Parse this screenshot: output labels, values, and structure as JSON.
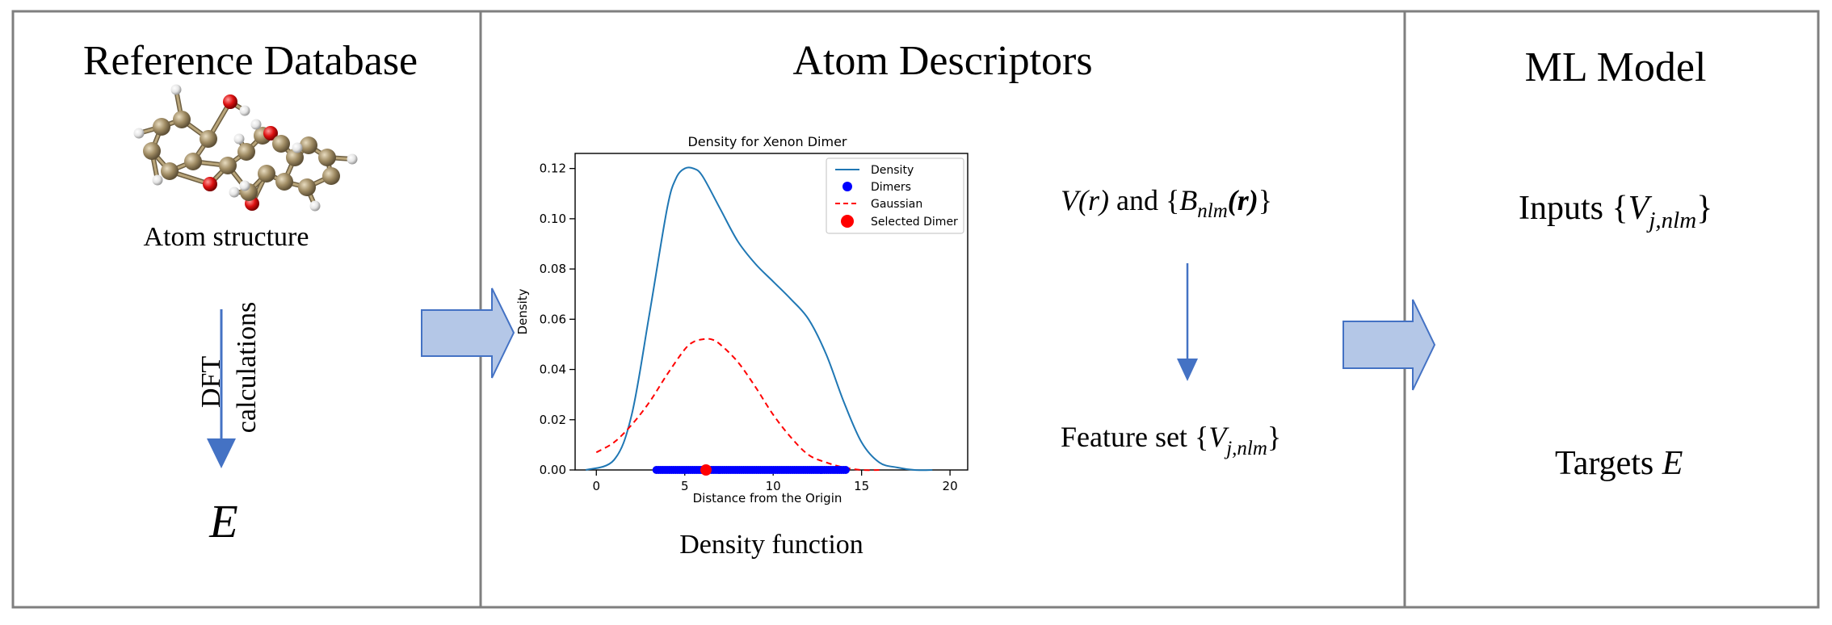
{
  "panels": {
    "reference": {
      "title": "Reference Database",
      "structure_caption": "Atom structure",
      "arrow_label_line1": "DFT",
      "arrow_label_line2": "calculations",
      "energy_symbol": "E"
    },
    "descriptors": {
      "title": "Atom Descriptors",
      "chart_caption": "Density function",
      "formula_top_v": "V",
      "formula_top_r": "(r)",
      "formula_top_and": " and {",
      "formula_top_b": "B",
      "formula_top_sub": "nlm",
      "formula_top_rbold": "(r)",
      "formula_top_close": "}",
      "feature_label": "Feature set {",
      "feature_v": "V",
      "feature_sub": "j,nlm",
      "feature_close": "}"
    },
    "model": {
      "title": "ML Model",
      "inputs_label": "Inputs {",
      "inputs_v": "V",
      "inputs_sub": "j,nlm",
      "inputs_close": "}",
      "targets_label": "Targets ",
      "targets_symbol": "E"
    }
  },
  "colors": {
    "panel_border": "#7f7f7f",
    "block_arrow_fill": "#b4c7e7",
    "block_arrow_stroke": "#4472c4",
    "thin_arrow": "#4472c4",
    "density_line": "#1f77b4",
    "gaussian_line": "#ff0000",
    "dimer_points": "#0000ff",
    "selected_dimer": "#ff0000",
    "carbon": "#a08c64",
    "oxygen": "#dd1111",
    "hydrogen": "#e4e4e4"
  },
  "chart_data": {
    "type": "line",
    "title": "Density for Xenon Dimer",
    "xlabel": "Distance from the Origin",
    "ylabel": "Density",
    "xlim": [
      -1.2,
      21
    ],
    "ylim": [
      0,
      0.126
    ],
    "xticks": [
      0,
      5,
      10,
      15,
      20
    ],
    "yticks": [
      0.0,
      0.02,
      0.04,
      0.06,
      0.08,
      0.1,
      0.12
    ],
    "grid": false,
    "legend_position": "top-right",
    "series": [
      {
        "name": "Density",
        "x": [
          -0.6,
          1.0,
          2.0,
          3.0,
          4.0,
          4.5,
          5.0,
          5.5,
          6.0,
          7.0,
          8.0,
          9.0,
          10.0,
          11.0,
          12.0,
          13.0,
          14.0,
          15.0,
          16.0,
          17.0,
          18.0,
          19.0
        ],
        "y": [
          0.0,
          0.004,
          0.022,
          0.062,
          0.104,
          0.116,
          0.12,
          0.12,
          0.117,
          0.104,
          0.091,
          0.082,
          0.075,
          0.068,
          0.06,
          0.046,
          0.027,
          0.011,
          0.003,
          0.001,
          0.0,
          0.0
        ]
      },
      {
        "name": "Gaussian",
        "x": [
          0.0,
          1.0,
          2.0,
          3.0,
          4.0,
          5.0,
          5.5,
          6.0,
          6.5,
          7.0,
          8.0,
          9.0,
          10.0,
          11.0,
          12.0,
          13.0,
          14.0,
          15.0,
          16.0
        ],
        "y": [
          0.007,
          0.011,
          0.018,
          0.027,
          0.038,
          0.048,
          0.051,
          0.052,
          0.052,
          0.05,
          0.043,
          0.033,
          0.022,
          0.013,
          0.006,
          0.003,
          0.001,
          0.0,
          0.0
        ]
      },
      {
        "name": "Dimers",
        "x_range": [
          3.4,
          14.1
        ],
        "y": 0.0
      },
      {
        "name": "Selected Dimer",
        "x": [
          6.2
        ],
        "y": [
          0.0
        ]
      }
    ]
  }
}
